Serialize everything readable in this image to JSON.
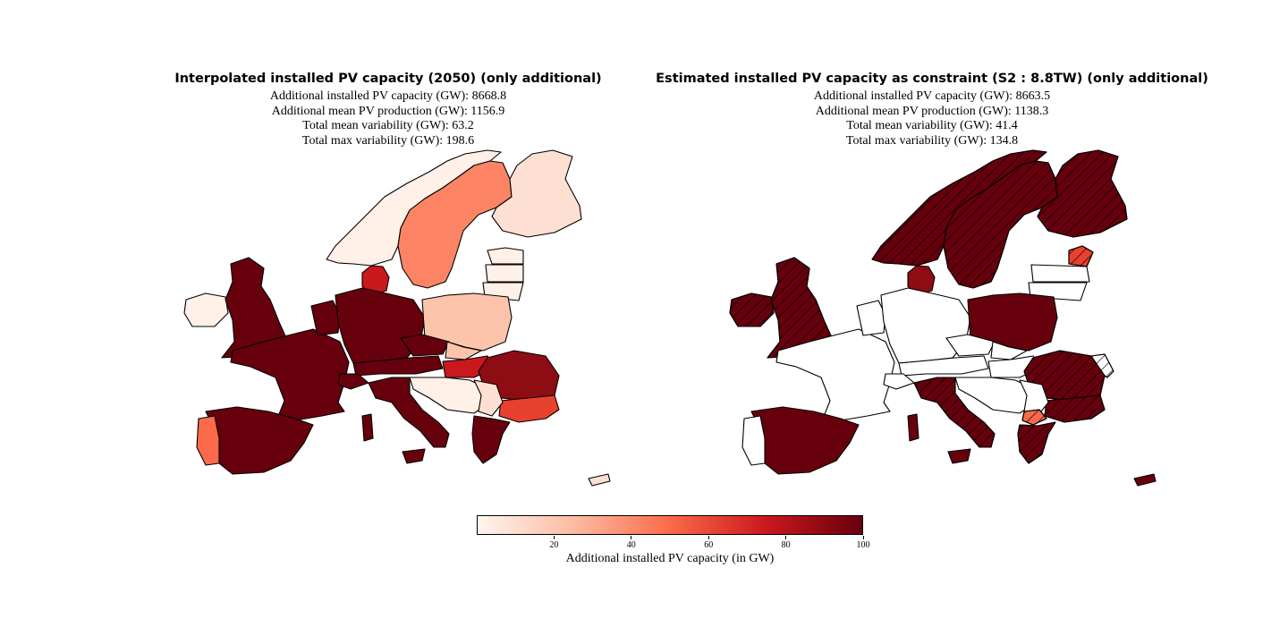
{
  "panels": [
    {
      "title": "Interpolated installed PV capacity (2050) (only additional)",
      "stats": [
        "Additional installed PV capacity (GW): 8668.8",
        "Additional mean PV production (GW): 1156.9",
        "Total mean variability (GW): 63.2",
        "Total max variability (GW): 198.6"
      ]
    },
    {
      "title": "Estimated installed PV capacity as constraint (S2 :  8.8TW) (only additional)",
      "stats": [
        "Additional installed PV capacity (GW): 8663.5",
        "Additional mean PV production (GW): 1138.3",
        "Total mean variability (GW): 41.4",
        "Total max variability (GW): 134.8"
      ]
    }
  ],
  "colorbar": {
    "label": "Additional installed PV capacity (in GW)",
    "ticks": [
      "20",
      "40",
      "60",
      "80",
      "100"
    ],
    "min": 0,
    "max": 100,
    "colors": [
      "#fff5f0",
      "#fcbba1",
      "#fb6a4a",
      "#cb181d",
      "#67000d"
    ]
  },
  "colors": {
    "darkest": "#67000d",
    "dark": "#8e0c14",
    "red": "#cb181d",
    "orange_red": "#e8412e",
    "salmon": "#fb6a4a",
    "light_salmon": "#fc8464",
    "peach": "#fcc5ab",
    "pale": "#fde0d2",
    "lightest": "#fff0e8"
  }
}
